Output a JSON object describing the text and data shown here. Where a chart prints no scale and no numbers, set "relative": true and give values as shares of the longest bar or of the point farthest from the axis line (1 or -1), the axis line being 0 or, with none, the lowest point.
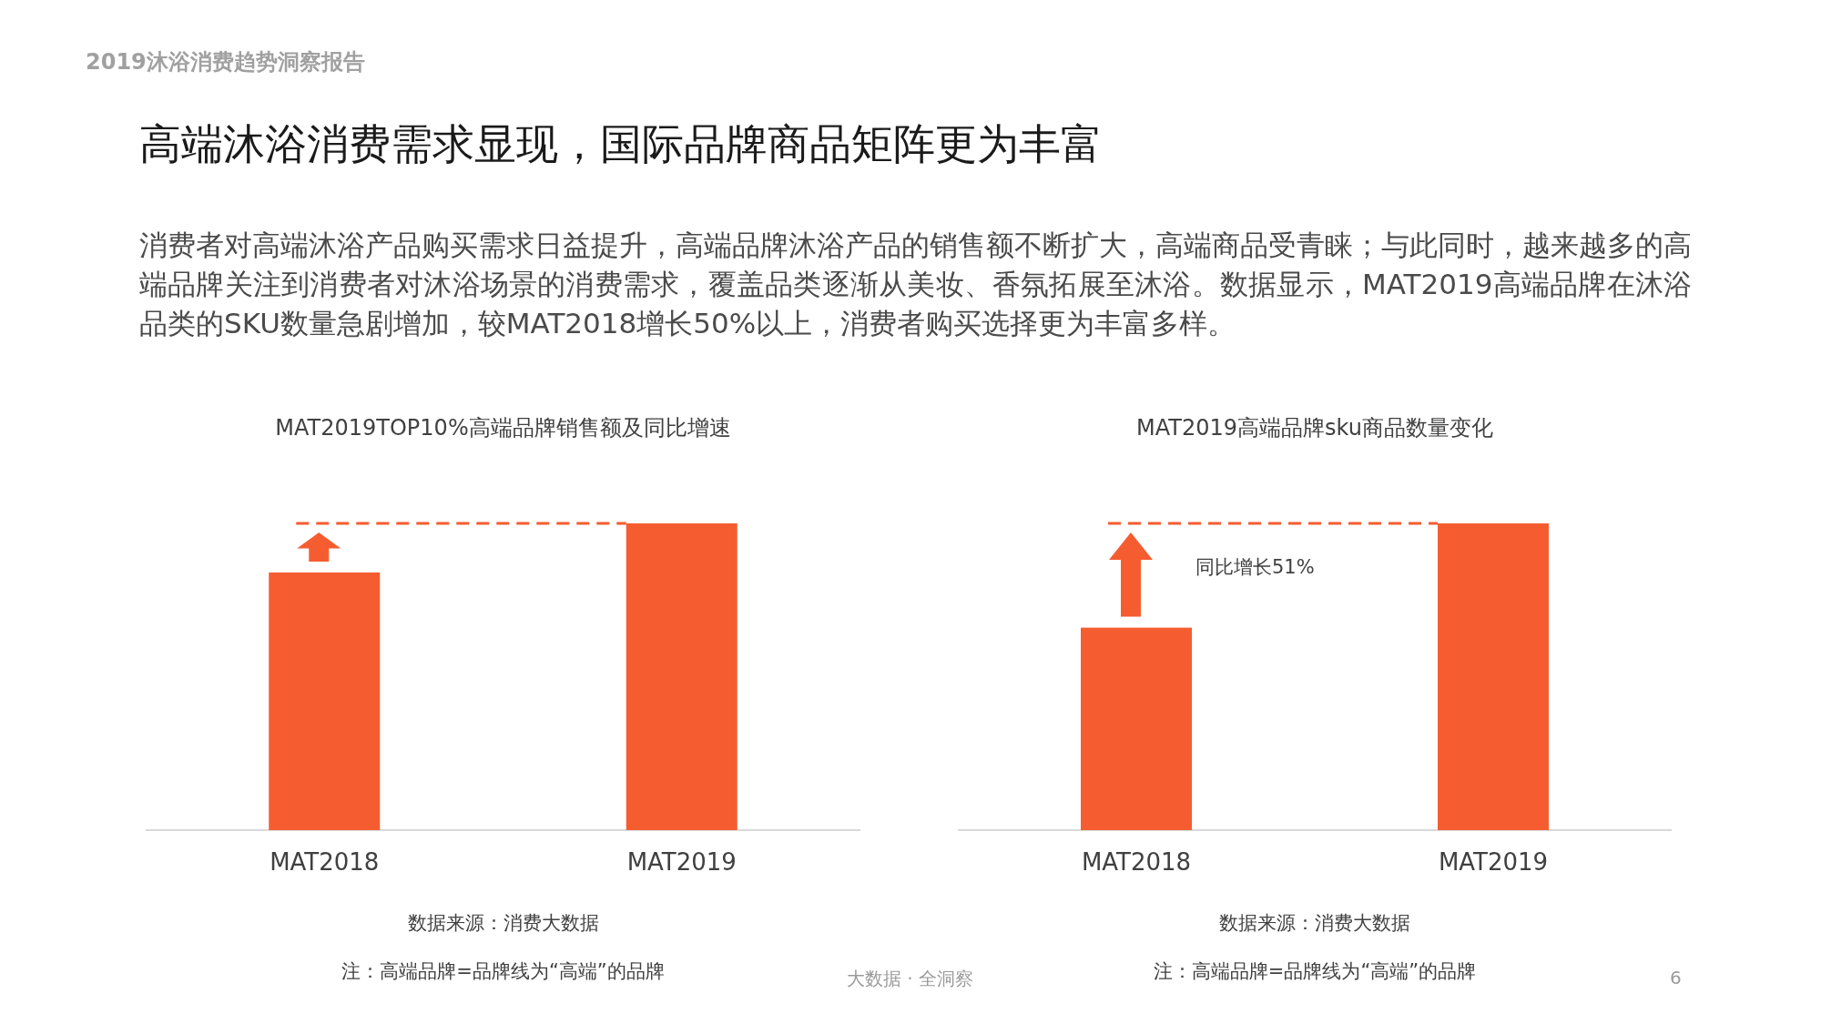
{
  "chart_data": [
    {
      "type": "other",
      "title": "高端沐浴消费需求显现，国际品牌商品矩阵更为丰富",
      "subtitle": "消费者对高端沐浴产品购买需求日益提升，高端品牌沐浴产品的销售额不断扩大，高端商品受青睐；与此同时，越来越多的高端品牌关注到消费者对沐浴场景的消费需求，覆盖品类逐渐从美妆、香氛拓展至沐浴。数据显示，MAT2019高端品牌在沐浴品类的SKU数量急剧增加，较MAT2018增长50%以上，消费者购买选择更为丰富多样。",
      "annotations": [
        "2019沐浴消费趋势洞察报告",
        "大数据 · 全洞察",
        "6"
      ]
    },
    {
      "type": "bar",
      "relative": true,
      "title": "MAT2019TOP10%高端品牌销售额及同比增速",
      "categories": [
        "MAT2018",
        "MAT2019"
      ],
      "values": [
        0.84,
        1
      ],
      "color": "#f55d31",
      "ref_lines": [
        {
          "axis": "y",
          "value": 1,
          "color": "#f55d31",
          "line_style": "dashed"
        }
      ],
      "annotations": [
        "数据来源：消费大数据",
        "注：高端品牌=品牌线为“高端”的品牌"
      ]
    },
    {
      "type": "bar",
      "relative": true,
      "title": "MAT2019高端品牌sku商品数量变化",
      "categories": [
        "MAT2018",
        "MAT2019"
      ],
      "values": [
        0.66,
        1
      ],
      "color": "#f55d31",
      "ref_lines": [
        {
          "axis": "y",
          "value": 1,
          "color": "#f55d31",
          "line_style": "dashed"
        }
      ],
      "annotations": [
        "同比增长51%",
        "数据来源：消费大数据",
        "注：高端品牌=品牌线为“高端”的品牌"
      ]
    }
  ]
}
